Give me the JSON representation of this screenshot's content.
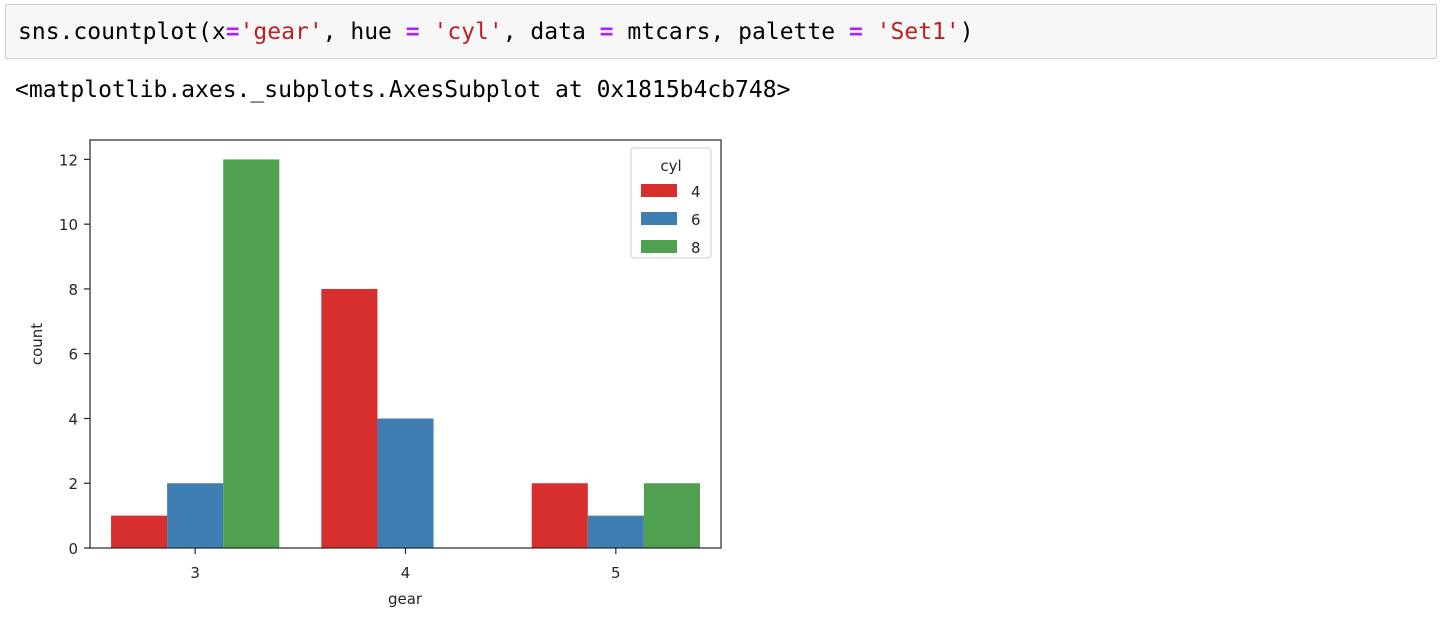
{
  "notebook": {
    "input_code": {
      "tokens": [
        {
          "text": "sns.countplot(x",
          "kind": "plain"
        },
        {
          "text": "=",
          "kind": "op"
        },
        {
          "text": "'gear'",
          "kind": "str"
        },
        {
          "text": ", hue ",
          "kind": "plain"
        },
        {
          "text": "=",
          "kind": "op"
        },
        {
          "text": " ",
          "kind": "plain"
        },
        {
          "text": "'cyl'",
          "kind": "str"
        },
        {
          "text": ", data ",
          "kind": "plain"
        },
        {
          "text": "=",
          "kind": "op"
        },
        {
          "text": " mtcars, palette ",
          "kind": "plain"
        },
        {
          "text": "=",
          "kind": "op"
        },
        {
          "text": " ",
          "kind": "plain"
        },
        {
          "text": "'Set1'",
          "kind": "str"
        },
        {
          "text": ")",
          "kind": "plain"
        }
      ]
    },
    "output_text": "<matplotlib.axes._subplots.AxesSubplot at 0x1815b4cb748>"
  },
  "chart_data": {
    "type": "bar",
    "categories": [
      "3",
      "4",
      "5"
    ],
    "series": [
      {
        "name": "4",
        "values": [
          1,
          8,
          2
        ],
        "color": "#d62f2e"
      },
      {
        "name": "6",
        "values": [
          2,
          4,
          1
        ],
        "color": "#3f7eb2"
      },
      {
        "name": "8",
        "values": [
          12,
          0,
          2
        ],
        "color": "#4fa150"
      }
    ],
    "xlabel": "gear",
    "ylabel": "count",
    "ylim": [
      0,
      12.6
    ],
    "yticks": [
      0,
      2,
      4,
      6,
      8,
      10,
      12
    ],
    "legend": {
      "title": "cyl",
      "position": "top-right"
    },
    "grid": false
  }
}
